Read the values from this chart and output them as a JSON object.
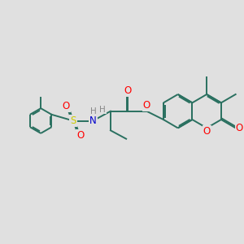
{
  "bg_color": "#e0e0e0",
  "bond_color": "#2a7060",
  "bond_width": 1.4,
  "dbo": 0.055,
  "atom_colors": {
    "O": "#ff0000",
    "N": "#0000cc",
    "S": "#cccc00",
    "H": "#888888"
  },
  "font_size": 8.5,
  "fig_size": [
    3.0,
    3.0
  ],
  "dpi": 100
}
